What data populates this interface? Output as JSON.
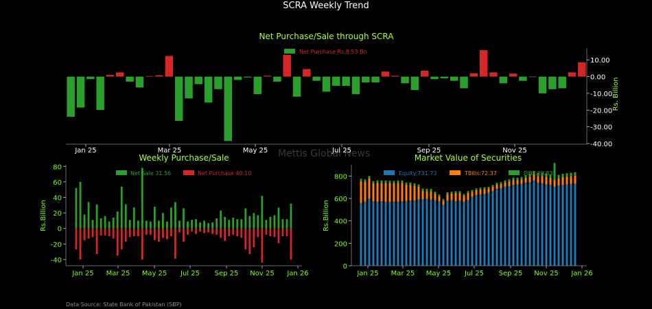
{
  "page_title": "SCRA Weekly Trend",
  "source": "Data Source: State Bank of Pakistan (SBP)",
  "watermark": "Mettis Global News",
  "colors": {
    "background": "#000000",
    "net_sale_green": "#2ca02c",
    "net_purchase_red": "#d62728",
    "equity_blue": "#1f77b4",
    "tbills_orange": "#ff7f0e",
    "pibs_green": "#2ca02c",
    "subtitle_green": "#adff2f",
    "tick_green": "#7fff00"
  },
  "chart_data": [
    {
      "type": "bar",
      "title": "Net Purchase/Sale through SCRA",
      "xlabel": "",
      "ylabel": "Rs. Billion",
      "ylim": [
        -40,
        15
      ],
      "yticks": [
        "10.00",
        "0.00",
        "-10.00",
        "-20.00",
        "-30.00",
        "-40.00"
      ],
      "xticks": [
        "Jan 25",
        "Mar 25",
        "May 25",
        "Jul 25",
        "Sep 25",
        "Nov 25"
      ],
      "legend": {
        "position": "top-center",
        "entries": [
          "Net Purchase Rs.8.53 Bn"
        ]
      },
      "values": [
        -24,
        -18.5,
        -1.5,
        -20,
        1,
        2.5,
        -3,
        -6.5,
        0.3,
        0.8,
        12.3,
        -26.5,
        -13,
        -4.5,
        -15.5,
        -7.5,
        -38.5,
        -2,
        -0.5,
        -10.5,
        0.5,
        -3,
        13,
        -12,
        4.5,
        -2.5,
        -9,
        -5.5,
        -5.5,
        -10.5,
        -3.5,
        -3.5,
        3,
        0.5,
        -4,
        -8,
        3.5,
        -1.5,
        -1,
        -2.5,
        -7,
        2,
        15.8,
        2.5,
        -4,
        1.8,
        -2.5,
        -0.3,
        -10,
        -7.5,
        -7,
        2.5,
        8.53
      ]
    },
    {
      "type": "bar",
      "title": "Weekly Purchase/Sale",
      "xlabel": "",
      "ylabel": "Rs.Billion",
      "ylim": [
        -48,
        82
      ],
      "yticks": [
        "80",
        "60",
        "40",
        "20",
        "0",
        "-20",
        "-40"
      ],
      "xticks": [
        "Jan 25",
        "Mar 25",
        "May 25",
        "Jul 25",
        "Sep 25",
        "Nov 25",
        "Jan 26"
      ],
      "legend": {
        "position": "top-center",
        "entries": [
          "Net Sale 31.56",
          "Net Purchase 40.10"
        ]
      },
      "series": [
        {
          "name": "Net Sale 31.56",
          "values": [
            52,
            60,
            18,
            34,
            11,
            31,
            13,
            16,
            9,
            14,
            22,
            54,
            31,
            11,
            27,
            10,
            78,
            10,
            9,
            28,
            10,
            20,
            9,
            27,
            34,
            10,
            26,
            9,
            11,
            12,
            8,
            10,
            7,
            8,
            13,
            23,
            15,
            11,
            14,
            12,
            12,
            26,
            16,
            20,
            17,
            42,
            11,
            15,
            17,
            27,
            12,
            12,
            32
          ]
        },
        {
          "name": "Net Purchase 40.10",
          "values": [
            -27,
            -40,
            -15,
            -13,
            -11,
            -33,
            -9,
            -9,
            -10,
            -13,
            -35,
            -27,
            -17,
            -11,
            -10,
            -10,
            -40,
            -8,
            -8,
            -15,
            -17,
            -12,
            -14,
            -10,
            -39,
            -5,
            -17,
            -8,
            -4,
            -7,
            -4,
            -6,
            -5,
            -7,
            -8,
            -12,
            -16,
            -10,
            -8,
            -10,
            -12,
            -27,
            -33,
            -24,
            -11,
            -44,
            -8,
            -10,
            -11,
            -19,
            -10,
            -10,
            -40
          ]
        }
      ]
    },
    {
      "type": "bar",
      "title": "Market Value of Securities",
      "xlabel": "",
      "ylabel": "Rs.Billion",
      "ylim": [
        0,
        900
      ],
      "yticks": [
        "800",
        "600",
        "400",
        "200",
        "0"
      ],
      "xticks": [
        "Jan 25",
        "Mar 25",
        "May 25",
        "Jul 25",
        "Sep 25",
        "Nov 25",
        "Jan 26"
      ],
      "legend": {
        "position": "top-center",
        "entries": [
          "Equity:731.73",
          "TBills:72.37",
          "PIBs:29.83"
        ]
      },
      "stacked": true,
      "series": [
        {
          "name": "Equity:731.73",
          "values": [
            560,
            570,
            600,
            575,
            570,
            575,
            570,
            568,
            572,
            570,
            574,
            577,
            582,
            580,
            590,
            593,
            596,
            590,
            585,
            575,
            545,
            580,
            585,
            575,
            580,
            570,
            585,
            615,
            630,
            635,
            640,
            650,
            665,
            685,
            690,
            705,
            710,
            720,
            725,
            730,
            740,
            745,
            760,
            740,
            735,
            725,
            720,
            705,
            715,
            720,
            725,
            730,
            731.73
          ]
        },
        {
          "name": "TBills:72.37",
          "values": [
            195,
            180,
            180,
            160,
            170,
            165,
            170,
            170,
            165,
            170,
            165,
            145,
            140,
            135,
            115,
            75,
            70,
            75,
            60,
            45,
            35,
            60,
            60,
            75,
            70,
            55,
            65,
            45,
            45,
            45,
            45,
            40,
            40,
            40,
            40,
            40,
            40,
            45,
            40,
            40,
            45,
            50,
            55,
            60,
            65,
            70,
            65,
            60,
            65,
            70,
            70,
            70,
            72.37
          ]
        },
        {
          "name": "PIBs:29.83",
          "values": [
            20,
            20,
            20,
            20,
            20,
            20,
            20,
            20,
            20,
            20,
            20,
            20,
            20,
            20,
            20,
            20,
            20,
            20,
            15,
            15,
            15,
            15,
            15,
            15,
            15,
            15,
            15,
            15,
            15,
            15,
            15,
            15,
            15,
            15,
            15,
            15,
            20,
            20,
            20,
            20,
            25,
            25,
            30,
            30,
            30,
            30,
            30,
            150,
            30,
            30,
            30,
            30,
            29.83
          ]
        }
      ]
    }
  ]
}
